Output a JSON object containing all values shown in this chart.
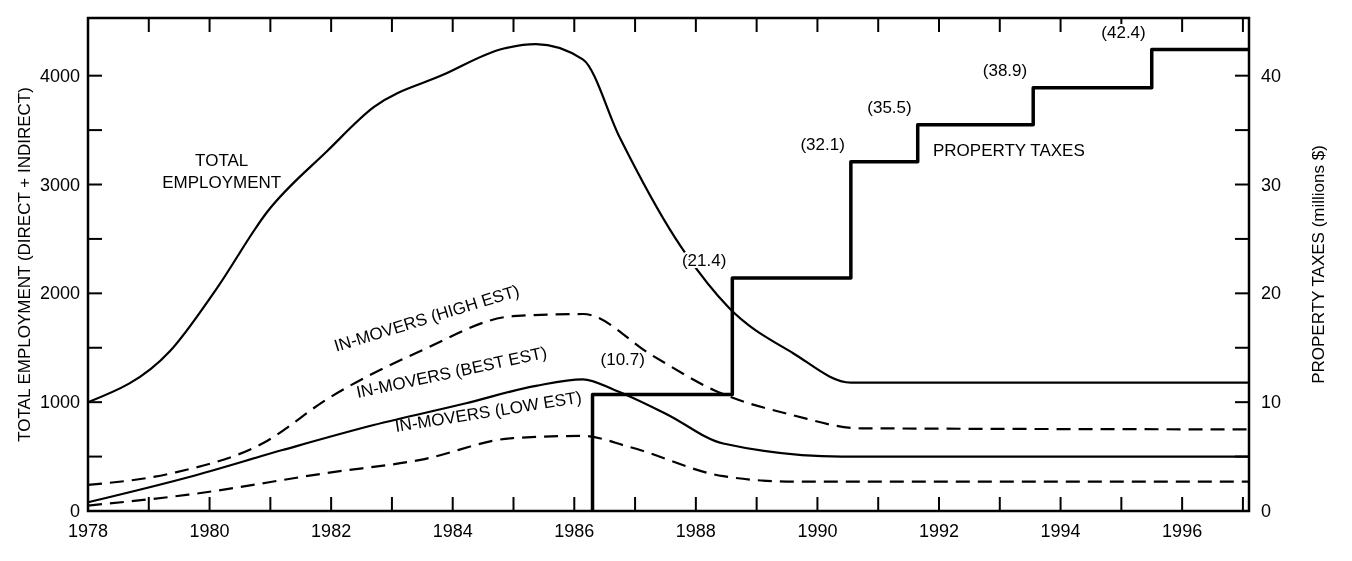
{
  "chart_data": {
    "type": "line",
    "ylabel": "TOTAL EMPLOYMENT (DIRECT + INDIRECT)",
    "y2label": "PROPERTY TAXES (millions $)",
    "xlim": [
      1978,
      1997.1
    ],
    "xticks": [
      1978,
      {
        "value": 1979,
        "label": null
      },
      1980,
      {
        "value": 1981,
        "label": null
      },
      1982,
      {
        "value": 1983,
        "label": null
      },
      1984,
      {
        "value": 1985,
        "label": null
      },
      1986,
      {
        "value": 1987,
        "label": null
      },
      1988,
      {
        "value": 1989,
        "label": null
      },
      1990,
      {
        "value": 1991,
        "label": null
      },
      1992,
      {
        "value": 1993,
        "label": null
      },
      1994,
      {
        "value": 1995,
        "label": null
      },
      1996,
      {
        "value": 1997,
        "label": null
      }
    ],
    "ylim": [
      0,
      4530
    ],
    "yticks": [
      0,
      {
        "value": 500,
        "label": null
      },
      1000,
      {
        "value": 1500,
        "label": null
      },
      2000,
      {
        "value": 2500,
        "label": null
      },
      3000,
      {
        "value": 3500,
        "label": null
      },
      4000
    ],
    "y2lim": [
      0,
      45.3
    ],
    "y2ticks": [
      0,
      {
        "value": 5,
        "label": null
      },
      10,
      {
        "value": 15,
        "label": null
      },
      20,
      {
        "value": 25,
        "label": null
      },
      30,
      {
        "value": 35,
        "label": null
      },
      40
    ],
    "grid": false,
    "legend": false,
    "series": [
      {
        "name": "TOTAL EMPLOYMENT",
        "color": "#000000",
        "line_style": "solid",
        "x": [
          1978,
          1979.35,
          1980.1,
          1980.95,
          1981.94,
          1982.7,
          1983.85,
          1984.84,
          1985.37,
          1986.14,
          1986.75,
          1987.66,
          1988.54,
          1989.6,
          1990.55,
          1997.1
        ],
        "values": [
          1000,
          1470,
          2030,
          2750,
          3310,
          3710,
          4010,
          4250,
          4290,
          4150,
          3430,
          2510,
          1870,
          1450,
          1180,
          1180
        ]
      },
      {
        "name": "IN-MOVERS (HIGH EST)",
        "color": "#000000",
        "line_style": "dashed",
        "x": [
          1978,
          1979.4,
          1980.9,
          1981.94,
          1983.47,
          1984.99,
          1986.14,
          1987.28,
          1988.3,
          1989.6,
          1990.7,
          1997.1
        ],
        "values": [
          240,
          350,
          630,
          1030,
          1470,
          1790,
          1810,
          1430,
          1110,
          880,
          760,
          750
        ]
      },
      {
        "name": "IN-MOVERS (BEST EST)",
        "color": "#000000",
        "line_style": "solid",
        "x": [
          1978,
          1979.65,
          1981.2,
          1982.7,
          1984.22,
          1985.37,
          1986.14,
          1986.67,
          1987.52,
          1988.45,
          1990.4,
          1997.1
        ],
        "values": [
          80,
          310,
          560,
          790,
          990,
          1150,
          1210,
          1110,
          890,
          620,
          500,
          500
        ]
      },
      {
        "name": "IN-MOVERS (LOW EST)",
        "color": "#000000",
        "line_style": "dashed",
        "x": [
          1978,
          1979.65,
          1981.94,
          1983.47,
          1984.99,
          1986.14,
          1986.9,
          1988.45,
          1989.6,
          1997.1
        ],
        "values": [
          50,
          150,
          350,
          470,
          670,
          690,
          590,
          320,
          270,
          270
        ]
      },
      {
        "name": "PROPERTY TAXES",
        "type": "step",
        "axis": "y2",
        "color": "#000000",
        "line_style": "solid",
        "x": [
          1986.3,
          1986.3,
          1988.6,
          1990.55,
          1991.65,
          1993.55,
          1995.5,
          1997.1
        ],
        "values": [
          0,
          10.7,
          21.4,
          32.1,
          35.5,
          38.9,
          42.4,
          42.4
        ],
        "value_labels": [
          null,
          "(10.7)",
          "(21.4)",
          "(32.1)",
          "(35.5)",
          "(38.9)",
          "(42.4)",
          null
        ]
      }
    ]
  }
}
